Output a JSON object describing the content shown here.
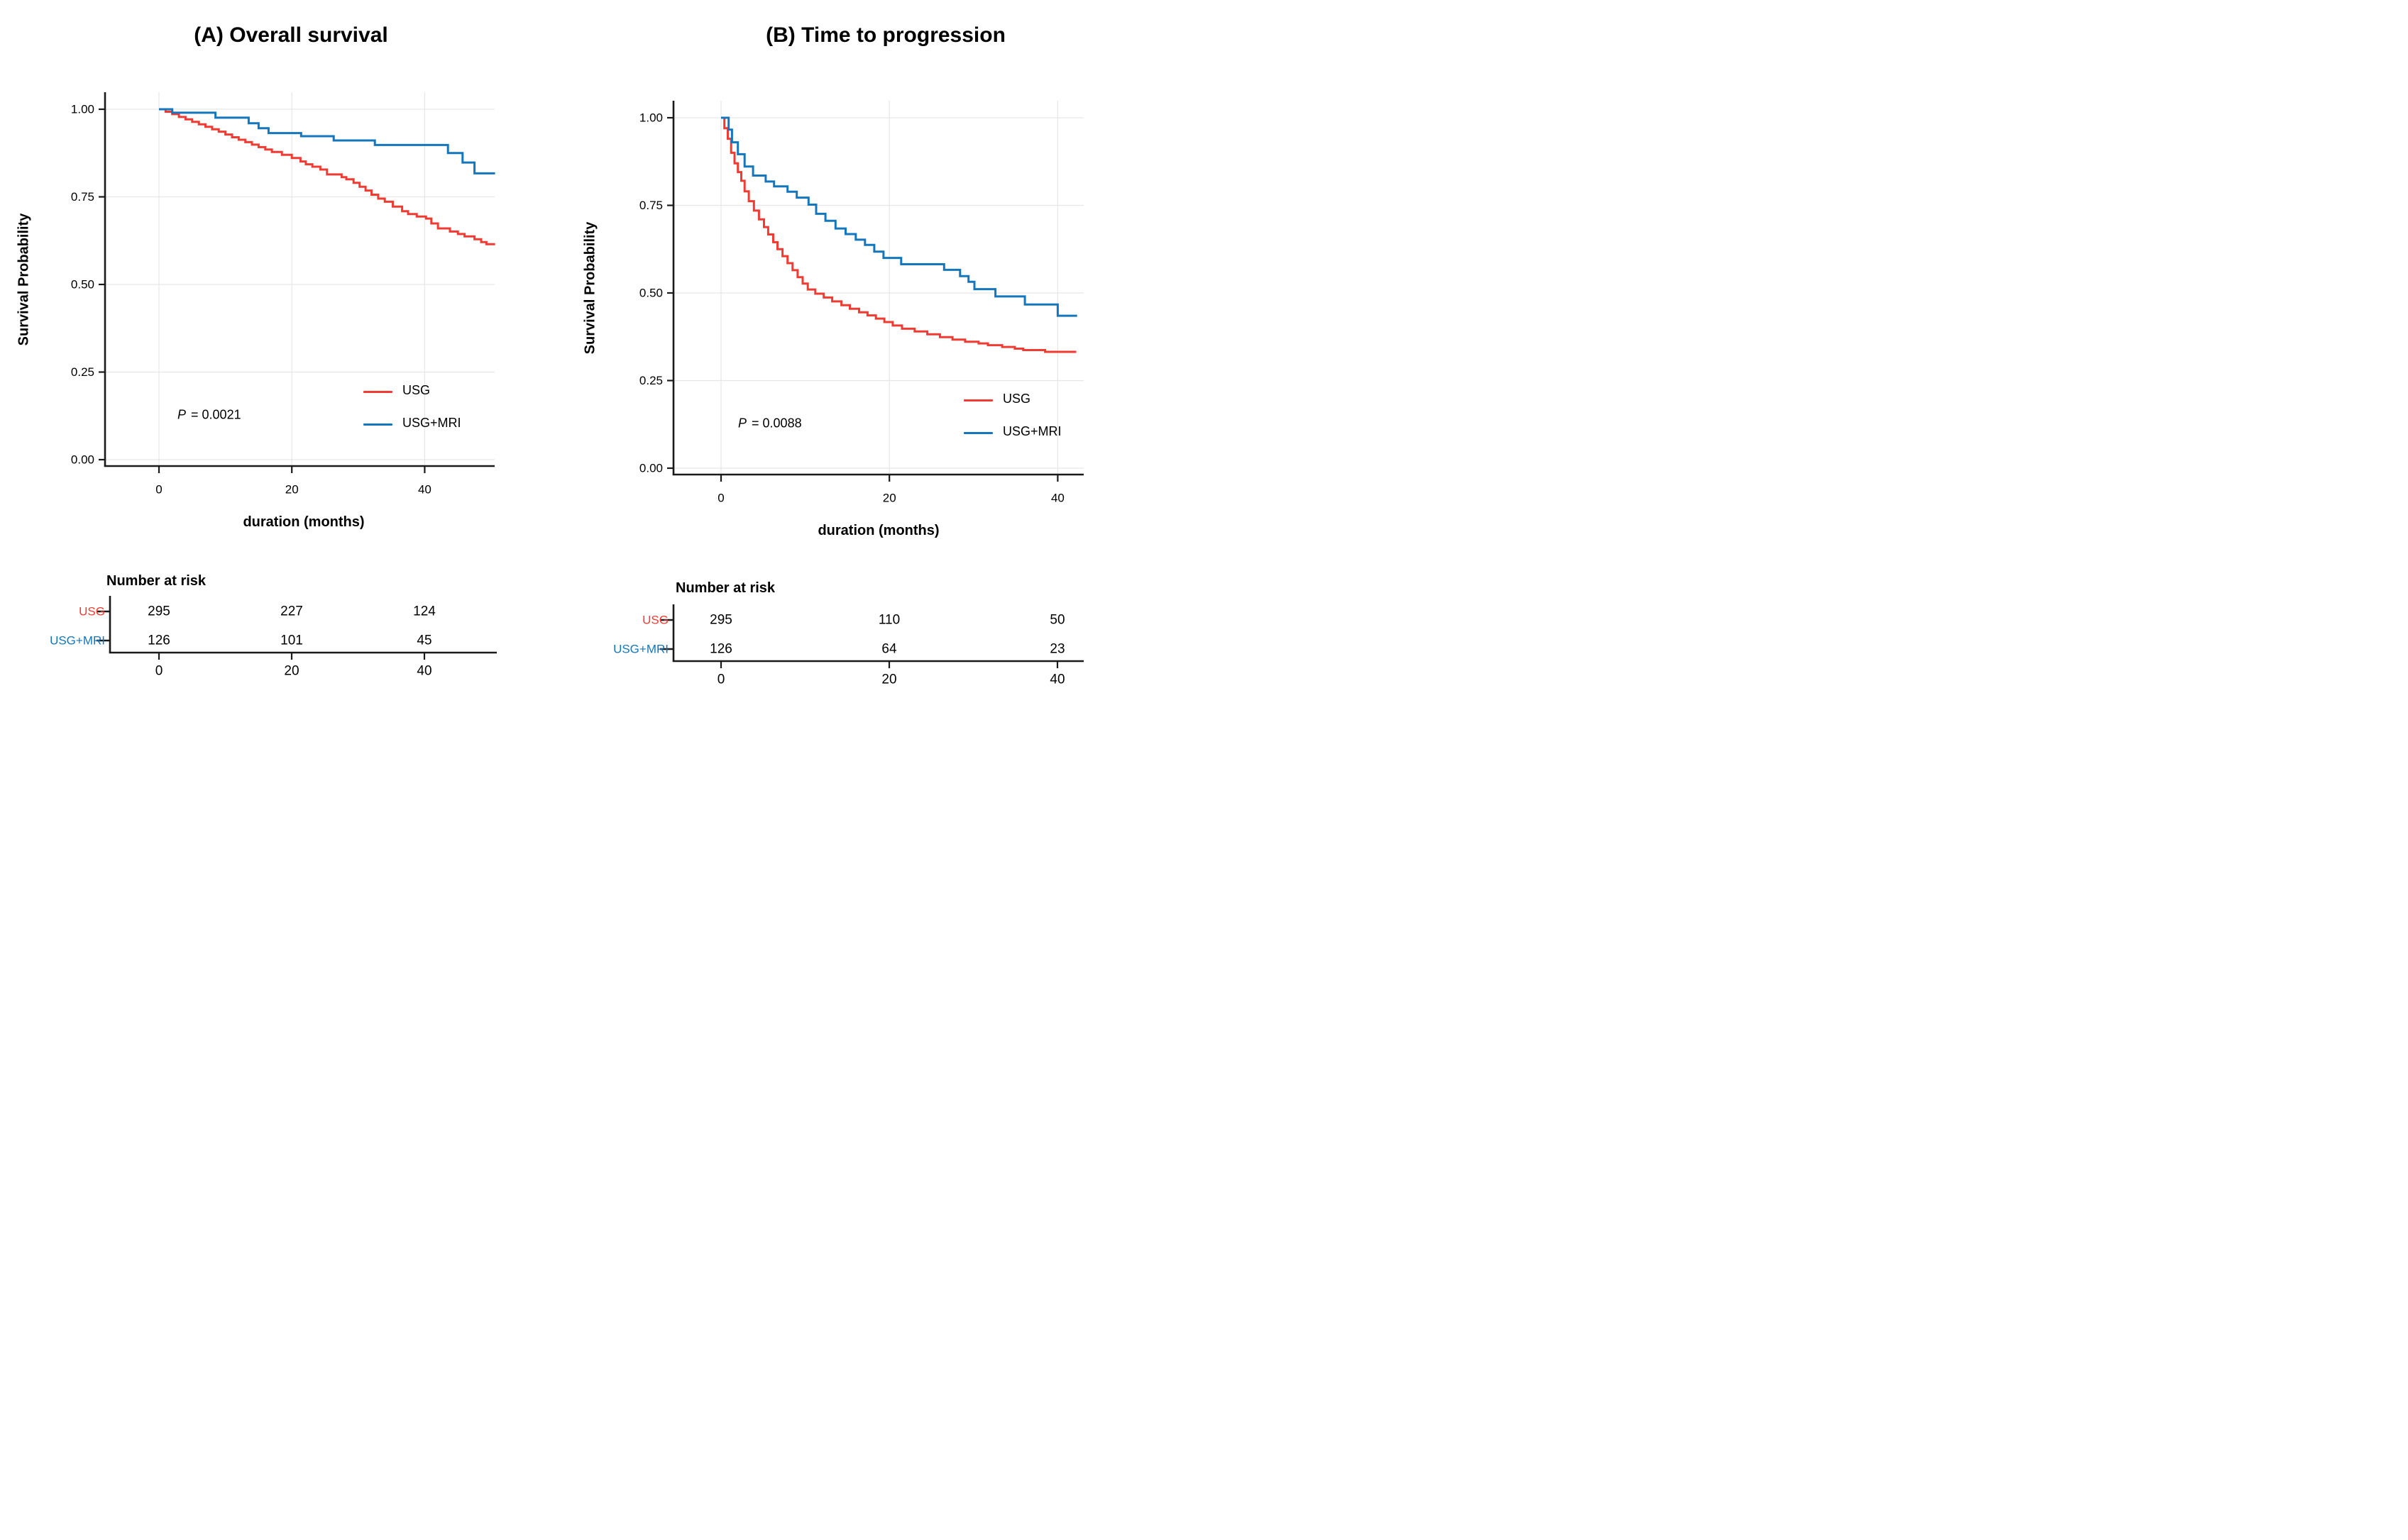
{
  "figure_type": "kaplan-meier-survival-figure",
  "colors": {
    "usg": "#F03B32",
    "usg_mri": "#1476BC",
    "grid": "#E6E6E6",
    "axis": "#1A1A1A",
    "text": "#000000"
  },
  "chart_data": [
    {
      "type": "line",
      "subtype": "kaplan-meier-step",
      "panel": "A",
      "title": "(A) Overall survival",
      "xlabel": "duration (months)",
      "ylabel": "Survival Probability",
      "p_label": "P",
      "p_rest": " = 0.0021",
      "xlim": [
        -8,
        52
      ],
      "ylim": [
        0,
        1
      ],
      "xticks": [
        "0",
        "20",
        "40"
      ],
      "xtick_values": [
        0,
        20,
        40
      ],
      "yticks": [
        "1.00",
        "0.75",
        "0.50",
        "0.25",
        "0.00"
      ],
      "ytick_values": [
        1.0,
        0.75,
        0.5,
        0.25,
        0.0
      ],
      "grid": true,
      "legend_position": "inside-bottom-right",
      "series": [
        {
          "name": "USG",
          "color": "#F03B32",
          "end_time": 50.6,
          "points": [
            [
              0,
              1.0
            ],
            [
              1,
              0.993
            ],
            [
              2,
              0.986
            ],
            [
              3,
              0.978
            ],
            [
              4,
              0.971
            ],
            [
              5,
              0.964
            ],
            [
              6,
              0.957
            ],
            [
              7,
              0.95
            ],
            [
              8,
              0.943
            ],
            [
              9,
              0.936
            ],
            [
              10,
              0.928
            ],
            [
              11,
              0.92
            ],
            [
              12,
              0.913
            ],
            [
              13,
              0.906
            ],
            [
              14,
              0.899
            ],
            [
              15,
              0.892
            ],
            [
              16,
              0.885
            ],
            [
              17,
              0.878
            ],
            [
              18.5,
              0.87
            ],
            [
              20,
              0.861
            ],
            [
              21.3,
              0.851
            ],
            [
              22.1,
              0.843
            ],
            [
              23.1,
              0.836
            ],
            [
              24.3,
              0.828
            ],
            [
              25.3,
              0.814
            ],
            [
              27.5,
              0.806
            ],
            [
              28.2,
              0.8
            ],
            [
              29.3,
              0.79
            ],
            [
              30.2,
              0.779
            ],
            [
              31.1,
              0.768
            ],
            [
              32,
              0.756
            ],
            [
              33,
              0.745
            ],
            [
              34,
              0.736
            ],
            [
              35.2,
              0.722
            ],
            [
              36.6,
              0.709
            ],
            [
              37.5,
              0.701
            ],
            [
              38.8,
              0.694
            ],
            [
              40.2,
              0.688
            ],
            [
              41,
              0.674
            ],
            [
              42,
              0.66
            ],
            [
              43.8,
              0.651
            ],
            [
              45,
              0.644
            ],
            [
              46,
              0.637
            ],
            [
              47.5,
              0.629
            ],
            [
              48.5,
              0.621
            ],
            [
              49.3,
              0.615
            ]
          ]
        },
        {
          "name": "USG+MRI",
          "color": "#1476BC",
          "end_time": 50.6,
          "points": [
            [
              0,
              1.0
            ],
            [
              2,
              0.99
            ],
            [
              8.5,
              0.976
            ],
            [
              13.5,
              0.96
            ],
            [
              15,
              0.946
            ],
            [
              16.5,
              0.932
            ],
            [
              21.4,
              0.923
            ],
            [
              26.3,
              0.911
            ],
            [
              32.5,
              0.898
            ],
            [
              43.5,
              0.875
            ],
            [
              45.7,
              0.848
            ],
            [
              47.5,
              0.817
            ]
          ]
        }
      ],
      "risk_table": {
        "title": "Number at risk",
        "timepoints": [
          "0",
          "20",
          "40"
        ],
        "rows": [
          {
            "label": "USG",
            "color": "#F03B32",
            "values": [
              "295",
              "227",
              "124"
            ]
          },
          {
            "label": "USG+MRI",
            "color": "#1476BC",
            "values": [
              "126",
              "101",
              "45"
            ]
          }
        ]
      }
    },
    {
      "type": "line",
      "subtype": "kaplan-meier-step",
      "panel": "B",
      "title": "(B) Time to progression",
      "xlabel": "duration (months)",
      "ylabel": "Survival Probability",
      "p_label": "P",
      "p_rest": " = 0.0088",
      "xlim": [
        -6,
        44
      ],
      "ylim": [
        0,
        1
      ],
      "xticks": [
        "0",
        "20",
        "40"
      ],
      "xtick_values": [
        0,
        20,
        40
      ],
      "yticks": [
        "1.00",
        "0.75",
        "0.50",
        "0.25",
        "0.00"
      ],
      "ytick_values": [
        1.0,
        0.75,
        0.5,
        0.25,
        0.0
      ],
      "grid": true,
      "legend_position": "inside-bottom-right",
      "series": [
        {
          "name": "USG",
          "color": "#F03B32",
          "end_time": 42.2,
          "points": [
            [
              0,
              1.0
            ],
            [
              0.4,
              0.97
            ],
            [
              0.8,
              0.94
            ],
            [
              1.2,
              0.9
            ],
            [
              1.6,
              0.87
            ],
            [
              2.0,
              0.845
            ],
            [
              2.4,
              0.82
            ],
            [
              2.8,
              0.79
            ],
            [
              3.3,
              0.762
            ],
            [
              3.9,
              0.735
            ],
            [
              4.5,
              0.71
            ],
            [
              5.1,
              0.688
            ],
            [
              5.6,
              0.667
            ],
            [
              6.2,
              0.645
            ],
            [
              6.7,
              0.625
            ],
            [
              7.3,
              0.605
            ],
            [
              7.9,
              0.585
            ],
            [
              8.5,
              0.565
            ],
            [
              9.1,
              0.545
            ],
            [
              9.7,
              0.527
            ],
            [
              10.3,
              0.51
            ],
            [
              11.2,
              0.498
            ],
            [
              12.2,
              0.487
            ],
            [
              13.2,
              0.476
            ],
            [
              14.3,
              0.465
            ],
            [
              15.3,
              0.455
            ],
            [
              16.4,
              0.445
            ],
            [
              17.4,
              0.436
            ],
            [
              18.4,
              0.427
            ],
            [
              19.4,
              0.417
            ],
            [
              20.4,
              0.407
            ],
            [
              21.5,
              0.398
            ],
            [
              23,
              0.39
            ],
            [
              24.5,
              0.382
            ],
            [
              26,
              0.374
            ],
            [
              27.5,
              0.367
            ],
            [
              29,
              0.361
            ],
            [
              30.6,
              0.356
            ],
            [
              31.7,
              0.351
            ],
            [
              33.4,
              0.346
            ],
            [
              34.9,
              0.341
            ],
            [
              35.9,
              0.337
            ],
            [
              38.5,
              0.332
            ]
          ]
        },
        {
          "name": "USG+MRI",
          "color": "#1476BC",
          "end_time": 42.3,
          "points": [
            [
              0,
              1.0
            ],
            [
              0.9,
              0.966
            ],
            [
              1.3,
              0.93
            ],
            [
              2.0,
              0.896
            ],
            [
              2.8,
              0.861
            ],
            [
              3.8,
              0.835
            ],
            [
              5.3,
              0.818
            ],
            [
              6.3,
              0.804
            ],
            [
              7.9,
              0.789
            ],
            [
              9.0,
              0.772
            ],
            [
              10.4,
              0.752
            ],
            [
              11.3,
              0.726
            ],
            [
              12.4,
              0.706
            ],
            [
              13.6,
              0.684
            ],
            [
              14.8,
              0.668
            ],
            [
              16.0,
              0.652
            ],
            [
              17.1,
              0.637
            ],
            [
              18.2,
              0.618
            ],
            [
              19.3,
              0.6
            ],
            [
              21.4,
              0.582
            ],
            [
              26.5,
              0.566
            ],
            [
              28.4,
              0.548
            ],
            [
              29.4,
              0.532
            ],
            [
              30.1,
              0.511
            ],
            [
              32.6,
              0.49
            ],
            [
              36.1,
              0.467
            ],
            [
              40.0,
              0.435
            ]
          ]
        }
      ],
      "risk_table": {
        "title": "Number at risk",
        "timepoints": [
          "0",
          "20",
          "40"
        ],
        "rows": [
          {
            "label": "USG",
            "color": "#F03B32",
            "values": [
              "295",
              "110",
              "50"
            ]
          },
          {
            "label": "USG+MRI",
            "color": "#1476BC",
            "values": [
              "126",
              "64",
              "23"
            ]
          }
        ]
      }
    }
  ]
}
